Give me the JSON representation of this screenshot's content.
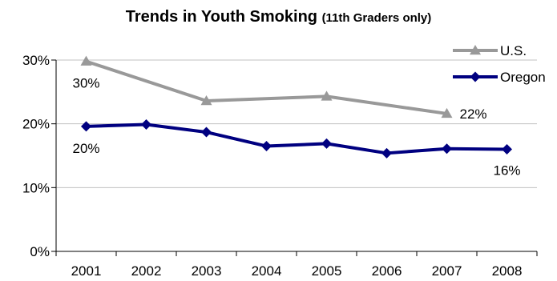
{
  "chart_data": {
    "type": "line",
    "title": "Trends in Youth Smoking",
    "subtitle": "(11th Graders only)",
    "categories": [
      "2001",
      "2002",
      "2003",
      "2004",
      "2005",
      "2006",
      "2007",
      "2008"
    ],
    "y_ticks": [
      "0%",
      "10%",
      "20%",
      "30%"
    ],
    "ylim": [
      0,
      30
    ],
    "grid": "horizontal",
    "legend_position": "top-right",
    "series": [
      {
        "name": "U.S.",
        "color": "#999999",
        "marker": "triangle",
        "values": [
          29.8,
          null,
          23.6,
          null,
          24.3,
          null,
          21.6,
          null
        ]
      },
      {
        "name": "Oregon",
        "color": "#000080",
        "marker": "diamond",
        "values": [
          19.6,
          19.9,
          18.7,
          16.5,
          16.9,
          15.4,
          16.1,
          16.0
        ]
      }
    ],
    "annotations": [
      {
        "series": "U.S.",
        "index": 0,
        "text": "30%"
      },
      {
        "series": "U.S.",
        "index": 6,
        "text": "22%"
      },
      {
        "series": "Oregon",
        "index": 0,
        "text": "20%"
      },
      {
        "series": "Oregon",
        "index": 7,
        "text": "16%"
      }
    ]
  }
}
